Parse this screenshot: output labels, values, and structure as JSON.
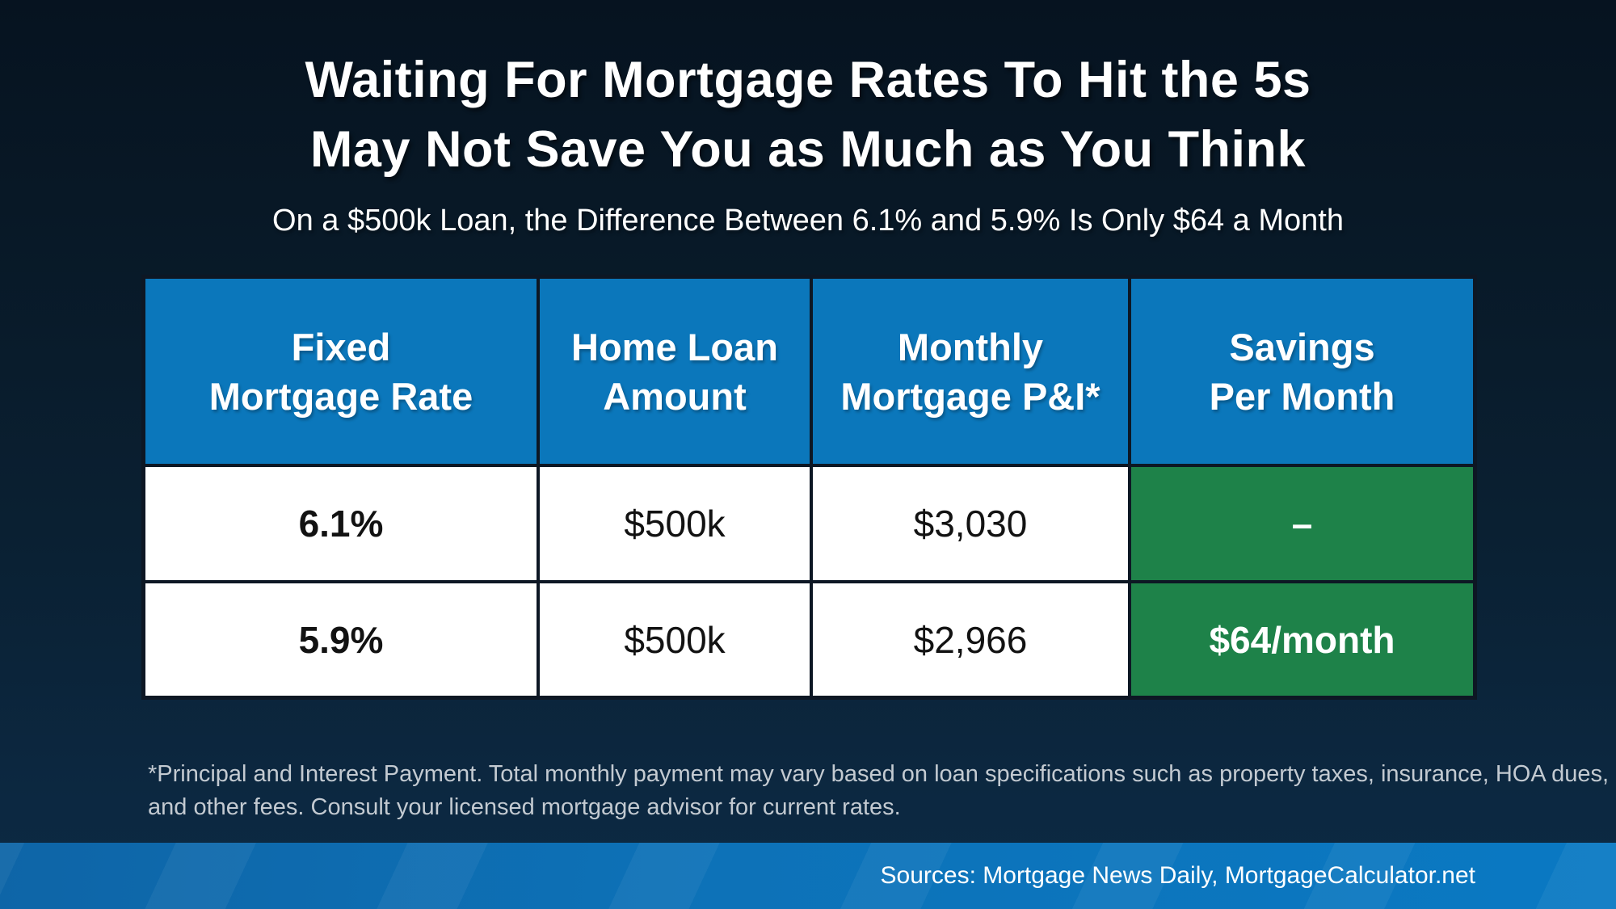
{
  "title": {
    "line1": "Waiting For Mortgage Rates To Hit the 5s",
    "line2": "May Not Save You as Much as You Think"
  },
  "subtitle": "On a $500k Loan, the Difference Between 6.1% and 5.9% Is Only $64 a Month",
  "table": {
    "headers": [
      {
        "line1": "Fixed",
        "line2": "Mortgage Rate"
      },
      {
        "line1": "Home Loan",
        "line2": "Amount"
      },
      {
        "line1": "Monthly",
        "line2": "Mortgage P&I*"
      },
      {
        "line1": "Savings",
        "line2": "Per Month"
      }
    ],
    "rows": [
      {
        "rate": "6.1%",
        "loan": "$500k",
        "payment": "$3,030",
        "savings": "–"
      },
      {
        "rate": "5.9%",
        "loan": "$500k",
        "payment": "$2,966",
        "savings": "$64/month"
      }
    ]
  },
  "footnote": {
    "line1": "*Principal and Interest Payment. Total monthly payment may vary based on loan specifications such as property taxes, insurance, HOA dues,",
    "line2": "and other fees. Consult your licensed mortgage advisor for current rates."
  },
  "footer": {
    "sources": "Sources: Mortgage News Daily, MortgageCalculator.net"
  },
  "colors": {
    "header_blue": "#0b77bb",
    "savings_green": "#1e8249",
    "background_top": "#061320",
    "background_bottom": "#0d2a42",
    "footer_blue": "#0a79c3",
    "table_border": "#0d1724",
    "footnote_gray": "#c3cad1",
    "text_white": "#ffffff",
    "data_text": "#121212"
  },
  "chart_data": {
    "type": "table",
    "title": "Waiting For Mortgage Rates To Hit the 5s May Not Save You as Much as You Think",
    "subtitle": "On a $500k Loan, the Difference Between 6.1% and 5.9% Is Only $64 a Month",
    "columns": [
      "Fixed Mortgage Rate",
      "Home Loan Amount",
      "Monthly Mortgage P&I*",
      "Savings Per Month"
    ],
    "rows": [
      [
        "6.1%",
        "$500k",
        "$3,030",
        "–"
      ],
      [
        "5.9%",
        "$500k",
        "$2,966",
        "$64/month"
      ]
    ],
    "footnote": "*Principal and Interest Payment. Total monthly payment may vary based on loan specifications such as property taxes, insurance, HOA dues, and other fees. Consult your licensed mortgage advisor for current rates.",
    "sources": "Sources: Mortgage News Daily, MortgageCalculator.net"
  }
}
